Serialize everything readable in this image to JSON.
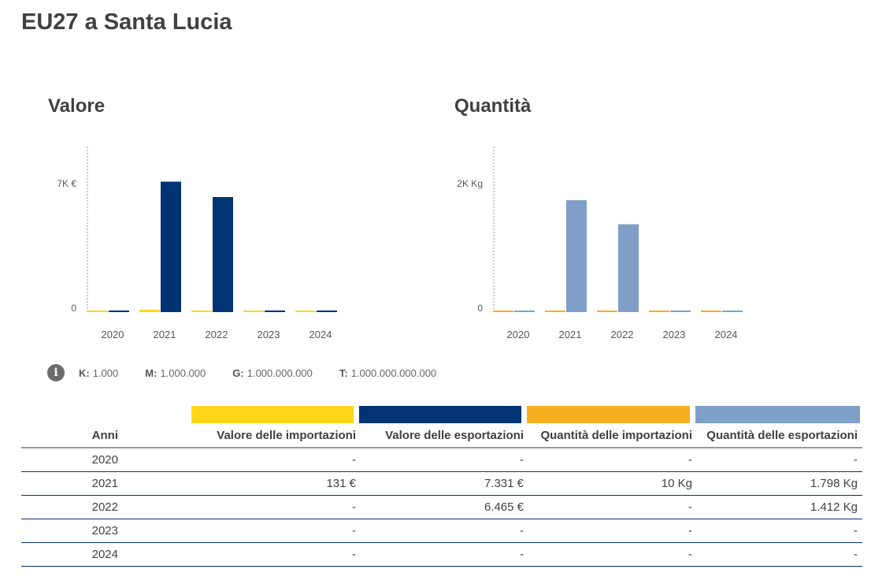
{
  "title": "EU27 a Santa Lucia",
  "colors": {
    "import_value": "#FFD617",
    "export_value": "#003473",
    "import_qty": "#F7AE21",
    "export_qty": "#7F9FC9"
  },
  "chart_data": [
    {
      "type": "bar",
      "title": "Valore",
      "categories": [
        "2020",
        "2021",
        "2022",
        "2023",
        "2024"
      ],
      "series": [
        {
          "name": "Valore delle importazioni",
          "values": [
            0,
            131,
            0,
            0,
            0
          ]
        },
        {
          "name": "Valore delle esportazioni",
          "values": [
            0,
            7331,
            6465,
            0,
            0
          ]
        }
      ],
      "yticks": [
        {
          "value": 0,
          "label": "0"
        },
        {
          "value": 7000,
          "label": "7K €"
        }
      ],
      "ylim": [
        0,
        9300
      ]
    },
    {
      "type": "bar",
      "title": "Quantità",
      "categories": [
        "2020",
        "2021",
        "2022",
        "2023",
        "2024"
      ],
      "series": [
        {
          "name": "Quantità delle importazioni",
          "values": [
            0,
            10,
            0,
            0,
            0
          ]
        },
        {
          "name": "Quantità delle esportazioni",
          "values": [
            0,
            1798,
            1412,
            0,
            0
          ]
        }
      ],
      "yticks": [
        {
          "value": 0,
          "label": "0"
        },
        {
          "value": 2000,
          "label": "2K Kg"
        }
      ],
      "ylim": [
        0,
        2660
      ]
    }
  ],
  "units": [
    {
      "k": "K:",
      "v": "1.000"
    },
    {
      "k": "M:",
      "v": "1.000.000"
    },
    {
      "k": "G:",
      "v": "1.000.000.000"
    },
    {
      "k": "T:",
      "v": "1.000.000.000.000"
    }
  ],
  "table": {
    "headers": [
      "Anni",
      "Valore delle importazioni",
      "Valore delle esportazioni",
      "Quantità delle importazioni",
      "Quantità delle esportazioni"
    ],
    "rows": [
      [
        "2020",
        "-",
        "-",
        "-",
        "-"
      ],
      [
        "2021",
        "131 €",
        "7.331 €",
        "10 Kg",
        "1.798 Kg"
      ],
      [
        "2022",
        "-",
        "6.465 €",
        "-",
        "1.412 Kg"
      ],
      [
        "2023",
        "-",
        "-",
        "-",
        "-"
      ],
      [
        "2024",
        "-",
        "-",
        "-",
        "-"
      ]
    ]
  }
}
